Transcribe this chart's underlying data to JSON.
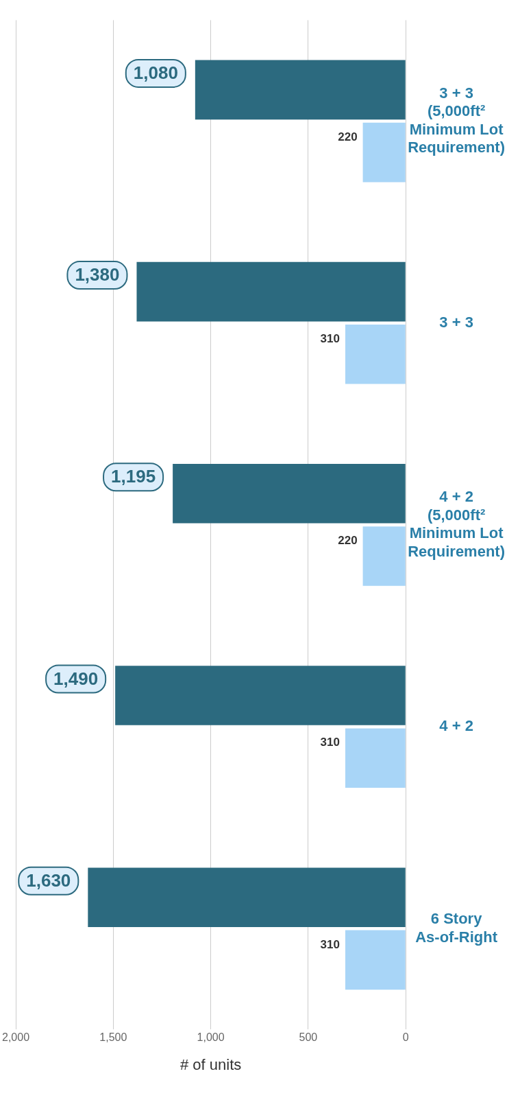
{
  "chart_data": {
    "type": "bar",
    "orientation": "horizontal",
    "xlabel": "# of units",
    "categories": [
      "3 + 3 (5,000ft² Minimum Lot Requirement)",
      "3 + 3",
      "4 + 2 (5,000ft² Minimum Lot Requirement)",
      "4 + 2",
      "6 Story As-of-Right"
    ],
    "series": [
      {
        "color": "#2c6a7f",
        "values": [
          1080,
          1380,
          1195,
          1490,
          1630
        ],
        "value_labels": [
          "1,080",
          "1,380",
          "1,195",
          "1,490",
          "1,630"
        ]
      },
      {
        "color": "#a8d5f7",
        "values": [
          220,
          310,
          220,
          310,
          310
        ],
        "value_labels": [
          "220",
          "310",
          "220",
          "310",
          "310"
        ]
      }
    ],
    "xlim": [
      2000,
      0
    ],
    "xticks": [
      {
        "value": 2000,
        "label": "2,000"
      },
      {
        "value": 1500,
        "label": "1,500"
      },
      {
        "value": 1000,
        "label": "1,000"
      },
      {
        "value": 500,
        "label": "500"
      },
      0
    ],
    "grid": "x",
    "legend": false
  }
}
